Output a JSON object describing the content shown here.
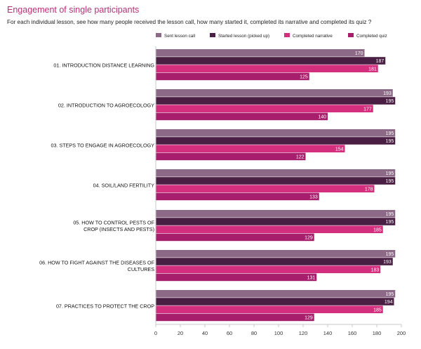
{
  "header": {
    "title": "Engagement of single participants",
    "subtitle": "For each individual lesson, see how many people received the lesson call, how many started it, completed its narrative and completed its quiz ?"
  },
  "colors": {
    "sent": "#8c6a87",
    "started": "#4a1f44",
    "narrative": "#d42f7e",
    "quiz": "#a61e6c",
    "axis": "#c8c8c8"
  },
  "chart_data": {
    "type": "bar",
    "orientation": "horizontal",
    "categories": [
      [
        "01. INTRODUCTION DISTANCE LEARNING"
      ],
      [
        "02. INTRODUCTION TO AGROECOLOGY"
      ],
      [
        "03. STEPS TO ENGAGE IN AGROECOLOGY"
      ],
      [
        "04. SOIL/LAND FERTILITY"
      ],
      [
        "05. HOW TO CONTROL PESTS OF",
        "CROP (INSECTS AND PESTS)"
      ],
      [
        "06. HOW TO FIGHT AGAINST THE DISEASES OF",
        "CULTURES"
      ],
      [
        "07. PRACTICES TO PROTECT THE CROP"
      ]
    ],
    "series": [
      {
        "name": "Sent lesson call",
        "color_key": "sent",
        "values": [
          170,
          193,
          195,
          195,
          195,
          195,
          195
        ]
      },
      {
        "name": "Started lesson (picked up)",
        "color_key": "started",
        "values": [
          187,
          195,
          195,
          195,
          195,
          193,
          194
        ]
      },
      {
        "name": "Completed narrative",
        "color_key": "narrative",
        "values": [
          181,
          177,
          154,
          178,
          185,
          183,
          185
        ]
      },
      {
        "name": "Completed quiz",
        "color_key": "quiz",
        "values": [
          125,
          140,
          122,
          133,
          129,
          131,
          129
        ]
      }
    ],
    "xlim": [
      0,
      200
    ],
    "xticks": [
      0,
      20,
      40,
      60,
      80,
      100,
      120,
      140,
      160,
      180,
      200
    ],
    "data_labels": true,
    "legend_position": "top-right",
    "grid": false
  }
}
